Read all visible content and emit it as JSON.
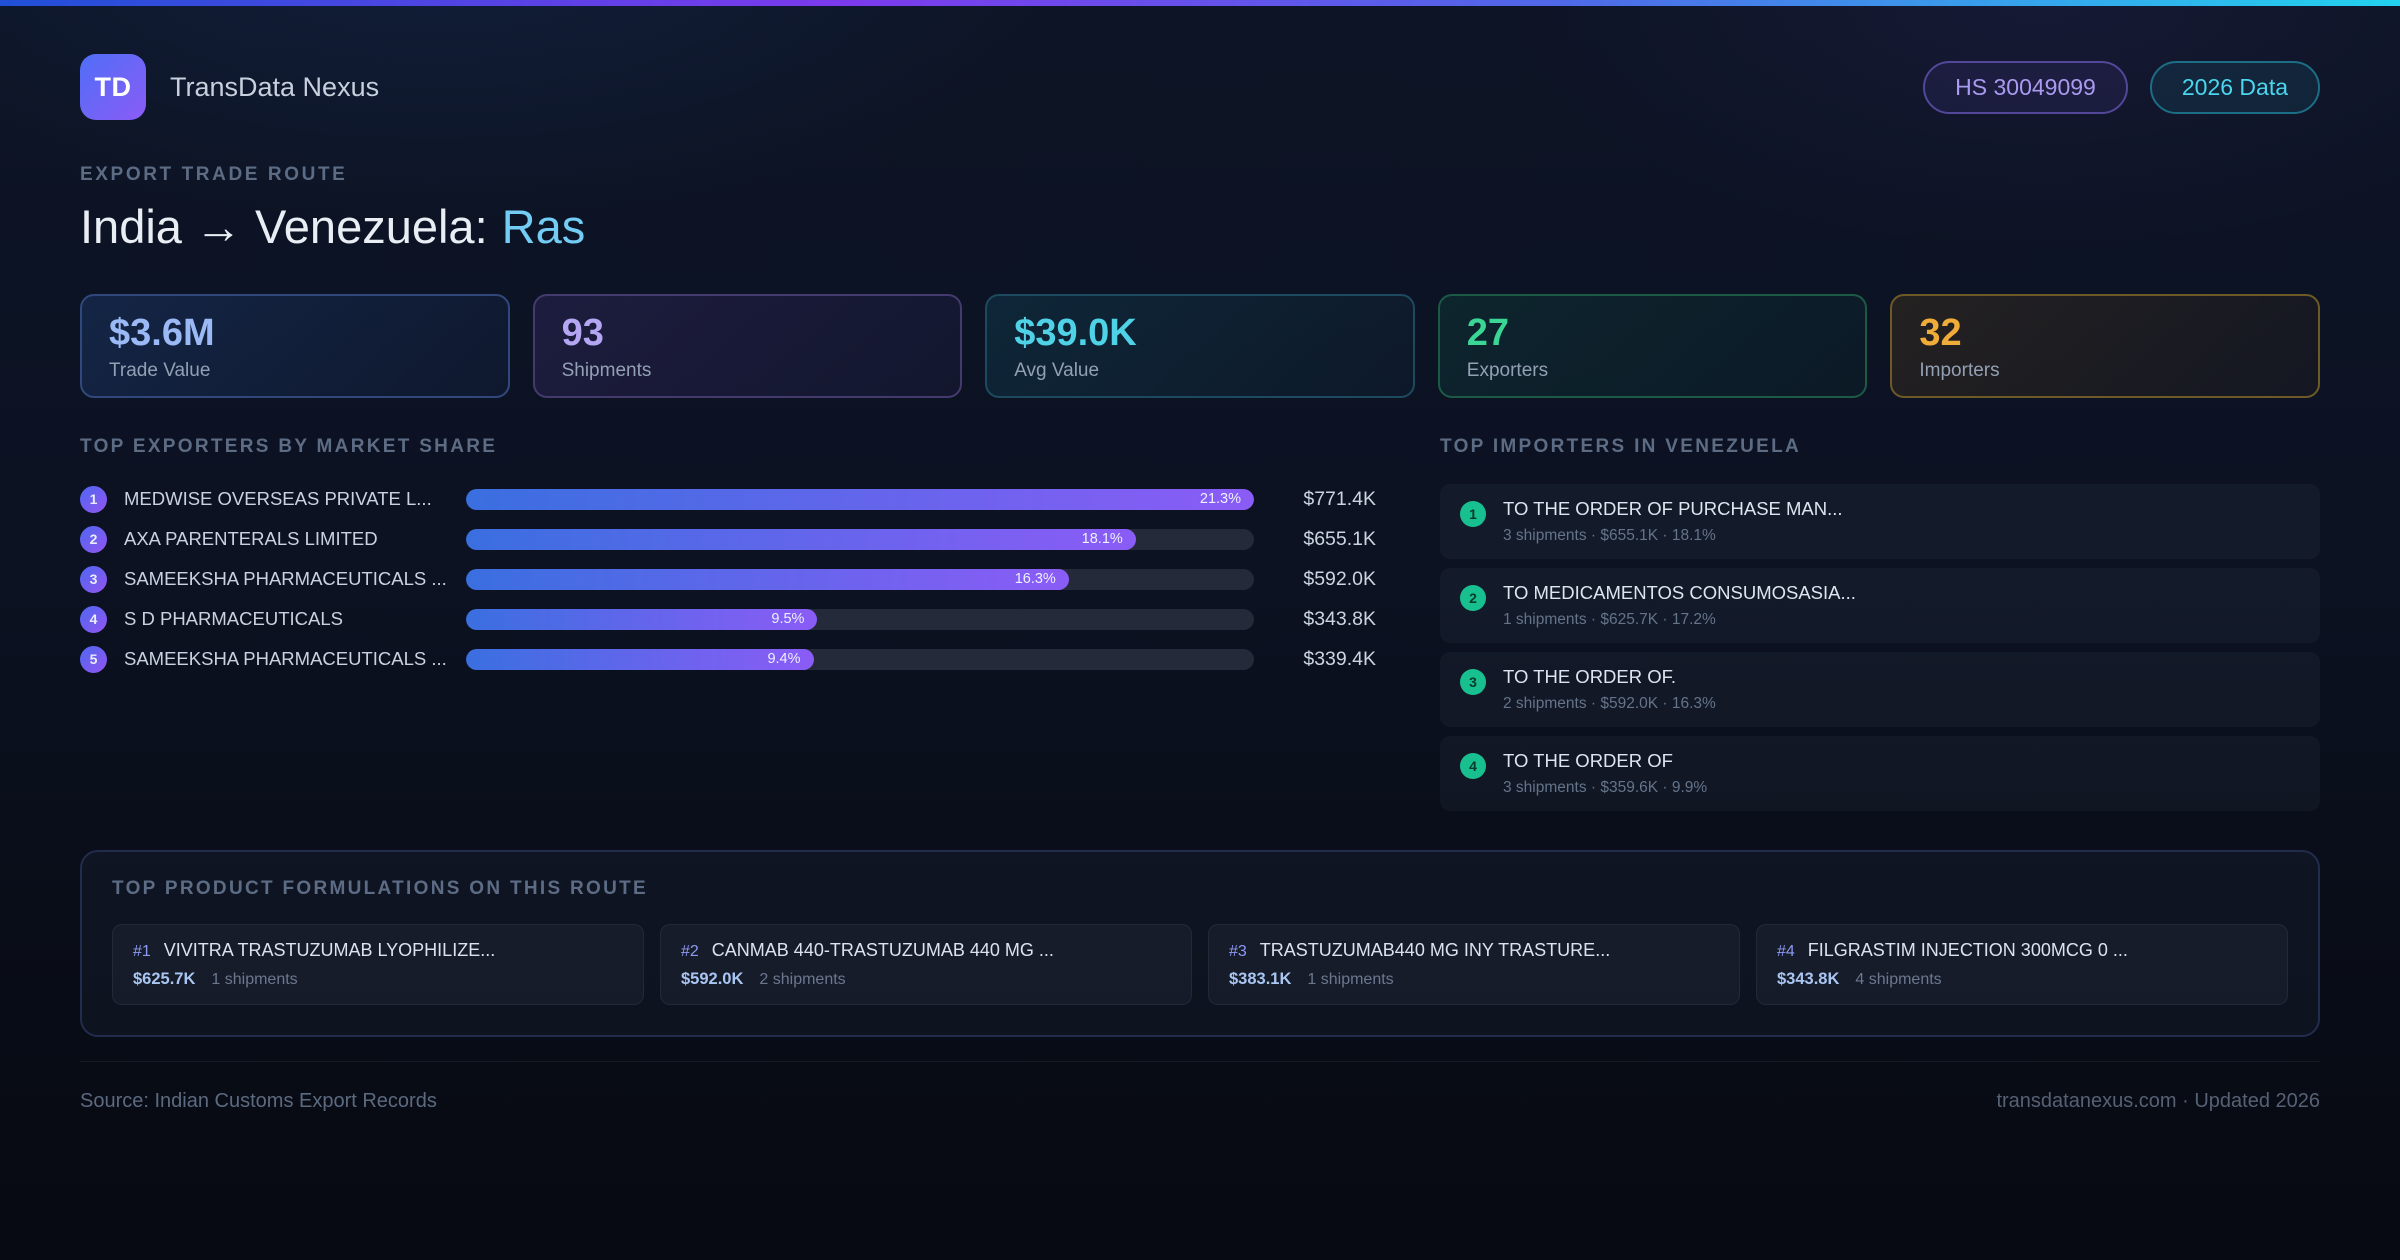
{
  "header": {
    "logo": "TD",
    "app_name": "TransData Nexus",
    "hs_badge": "HS 30049099",
    "year_badge": "2026 Data"
  },
  "hero": {
    "eyebrow": "EXPORT TRADE ROUTE",
    "title_main": "India → Venezuela:",
    "title_accent": "Ras"
  },
  "stats": [
    {
      "value": "$3.6M",
      "label": "Trade Value"
    },
    {
      "value": "93",
      "label": "Shipments"
    },
    {
      "value": "$39.0K",
      "label": "Avg Value"
    },
    {
      "value": "27",
      "label": "Exporters"
    },
    {
      "value": "32",
      "label": "Importers"
    }
  ],
  "exporters": {
    "title": "TOP EXPORTERS BY MARKET SHARE",
    "rows": [
      {
        "rank": "1",
        "name": "MEDWISE OVERSEAS PRIVATE L...",
        "share_pct": 21.3,
        "share_label": "21.3%",
        "value": "$771.4K"
      },
      {
        "rank": "2",
        "name": "AXA PARENTERALS LIMITED",
        "share_pct": 18.1,
        "share_label": "18.1%",
        "value": "$655.1K"
      },
      {
        "rank": "3",
        "name": "SAMEEKSHA PHARMACEUTICALS ...",
        "share_pct": 16.3,
        "share_label": "16.3%",
        "value": "$592.0K"
      },
      {
        "rank": "4",
        "name": "S D PHARMACEUTICALS",
        "share_pct": 9.5,
        "share_label": "9.5%",
        "value": "$343.8K"
      },
      {
        "rank": "5",
        "name": "SAMEEKSHA PHARMACEUTICALS ...",
        "share_pct": 9.4,
        "share_label": "9.4%",
        "value": "$339.4K"
      }
    ]
  },
  "importers": {
    "title": "TOP IMPORTERS IN VENEZUELA",
    "rows": [
      {
        "rank": "1",
        "name": "TO THE ORDER OF PURCHASE MAN...",
        "meta": "3 shipments · $655.1K · 18.1%"
      },
      {
        "rank": "2",
        "name": "TO MEDICAMENTOS CONSUMOSASIA...",
        "meta": "1 shipments · $625.7K · 17.2%"
      },
      {
        "rank": "3",
        "name": "TO THE ORDER OF.",
        "meta": "2 shipments · $592.0K · 16.3%"
      },
      {
        "rank": "4",
        "name": "TO THE ORDER OF",
        "meta": "3 shipments · $359.6K · 9.9%"
      }
    ]
  },
  "products": {
    "title": "TOP PRODUCT FORMULATIONS ON THIS ROUTE",
    "cards": [
      {
        "rank": "#1",
        "name": "VIVITRA TRASTUZUMAB LYOPHILIZE...",
        "value": "$625.7K",
        "shipments": "1 shipments"
      },
      {
        "rank": "#2",
        "name": "CANMAB 440-TRASTUZUMAB 440 MG ...",
        "value": "$592.0K",
        "shipments": "2 shipments"
      },
      {
        "rank": "#3",
        "name": "TRASTUZUMAB440 MG INY TRASTURE...",
        "value": "$383.1K",
        "shipments": "1 shipments"
      },
      {
        "rank": "#4",
        "name": "FILGRASTIM INJECTION 300MCG 0 ...",
        "value": "$343.8K",
        "shipments": "4 shipments"
      }
    ]
  },
  "footer": {
    "source": "Source: Indian Customs Export Records",
    "site": "transdatanexus.com · Updated 2026"
  }
}
